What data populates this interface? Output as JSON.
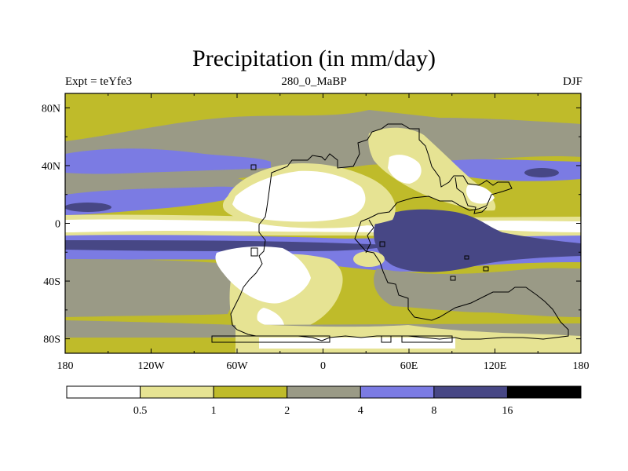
{
  "title": "Precipitation (in mm/day)",
  "subtitle_left": "Expt = teYfe3",
  "subtitle_center": "280_0_MaBP",
  "subtitle_right": "DJF",
  "map": {
    "lat_ticks": [
      {
        "value": 80,
        "label": "80N"
      },
      {
        "value": 40,
        "label": "40N"
      },
      {
        "value": 0,
        "label": "0"
      },
      {
        "value": -40,
        "label": "40S"
      },
      {
        "value": -80,
        "label": "80S"
      }
    ],
    "lon_ticks": [
      {
        "value": -180,
        "label": "180"
      },
      {
        "value": -120,
        "label": "120W"
      },
      {
        "value": -60,
        "label": "60W"
      },
      {
        "value": 0,
        "label": "0"
      },
      {
        "value": 60,
        "label": "60E"
      },
      {
        "value": 120,
        "label": "120E"
      },
      {
        "value": 180,
        "label": "180"
      }
    ]
  },
  "colorbar": {
    "colors": [
      "#ffffff",
      "#e6e393",
      "#bfbb2a",
      "#9a9a86",
      "#7b7be3",
      "#474785",
      "#000000"
    ],
    "labels": [
      "0.5",
      "1",
      "2",
      "4",
      "8",
      "16"
    ]
  },
  "palette": {
    "white": "#ffffff",
    "light_yellow": "#e6e393",
    "olive": "#bfbb2a",
    "gray": "#9a9a86",
    "blue": "#7b7be3",
    "dark_blue": "#474785"
  }
}
